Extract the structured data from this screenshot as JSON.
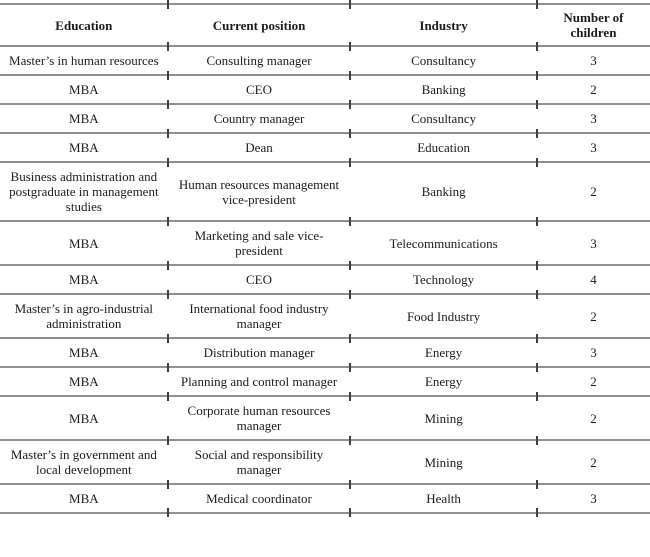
{
  "colors": {
    "line": "#8f8f8f",
    "tick": "#404040",
    "text": "#1b1b1b",
    "background": "#ffffff"
  },
  "table": {
    "columns": [
      "Education",
      "Current position",
      "Industry",
      "Number of children"
    ],
    "rows": [
      [
        "Master’s in human resources",
        "Consulting manager",
        "Consultancy",
        "3"
      ],
      [
        "MBA",
        "CEO",
        "Banking",
        "2"
      ],
      [
        "MBA",
        "Country manager",
        "Consultancy",
        "3"
      ],
      [
        "MBA",
        "Dean",
        "Education",
        "3"
      ],
      [
        "Business administration and postgraduate in management studies",
        "Human resources management vice-president",
        "Banking",
        "2"
      ],
      [
        "MBA",
        "Marketing and sale vice-president",
        "Telecommunications",
        "3"
      ],
      [
        "MBA",
        "CEO",
        "Technology",
        "4"
      ],
      [
        "Master’s in agro-industrial administration",
        "International food industry manager",
        "Food Industry",
        "2"
      ],
      [
        "MBA",
        "Distribution manager",
        "Energy",
        "3"
      ],
      [
        "MBA",
        "Planning and control manager",
        "Energy",
        "2"
      ],
      [
        "MBA",
        "Corporate human resources manager",
        "Mining",
        "2"
      ],
      [
        "Master’s in government and local development",
        "Social and responsibility manager",
        "Mining",
        "2"
      ],
      [
        "MBA",
        "Medical coordinator",
        "Health",
        "3"
      ]
    ]
  }
}
